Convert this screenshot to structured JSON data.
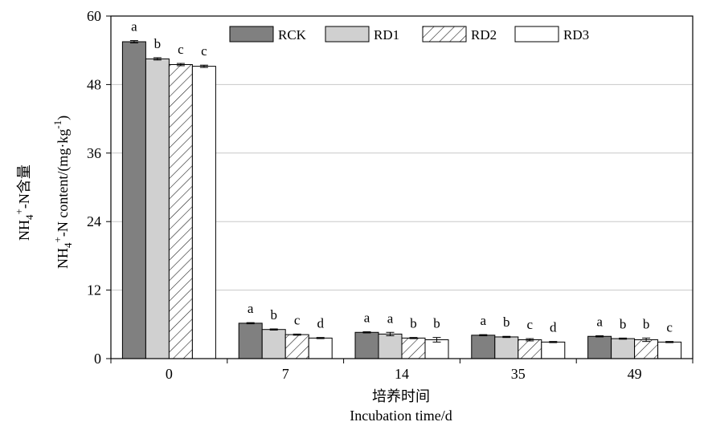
{
  "chart_data": {
    "type": "bar",
    "categories": [
      "0",
      "7",
      "14",
      "35",
      "49"
    ],
    "series": [
      {
        "name": "RCK",
        "values": [
          55.5,
          6.2,
          4.6,
          4.1,
          3.9
        ],
        "errors": [
          0.2,
          0.1,
          0.1,
          0.1,
          0.1
        ],
        "letters": [
          "a",
          "a",
          "a",
          "a",
          "a"
        ]
      },
      {
        "name": "RD1",
        "values": [
          52.5,
          5.1,
          4.3,
          3.8,
          3.5
        ],
        "errors": [
          0.2,
          0.1,
          0.3,
          0.1,
          0.1
        ],
        "letters": [
          "b",
          "b",
          "a",
          "b",
          "b"
        ]
      },
      {
        "name": "RD2",
        "values": [
          51.5,
          4.2,
          3.6,
          3.3,
          3.3
        ],
        "errors": [
          0.2,
          0.1,
          0.1,
          0.2,
          0.3
        ],
        "letters": [
          "c",
          "c",
          "b",
          "c",
          "b"
        ]
      },
      {
        "name": "RD3",
        "values": [
          51.2,
          3.6,
          3.3,
          2.9,
          2.9
        ],
        "errors": [
          0.2,
          0.1,
          0.4,
          0.1,
          0.1
        ],
        "letters": [
          "c",
          "d",
          "b",
          "d",
          "c"
        ]
      }
    ],
    "patterns": [
      "solid-dark",
      "solid-light",
      "hatch",
      "white"
    ],
    "colors": {
      "RCK": "#808080",
      "RD1": "#d0d0d0",
      "RD2": "#ffffff",
      "RD3": "#ffffff",
      "axis": "#000000",
      "grid": "#c8c8c8"
    },
    "ylim": [
      0,
      60
    ],
    "yticks": [
      0,
      12,
      24,
      36,
      48,
      60
    ],
    "grid": true,
    "legend_position": "top",
    "xlabel_cn": "培养时间",
    "xlabel_en": "Incubation time/d",
    "ylabel_cn_main": "NH",
    "ylabel_cn_sub": "4",
    "ylabel_cn_sup": "+",
    "ylabel_cn_rest": "-N含量",
    "ylabel_en_main": "NH",
    "ylabel_en_sub": "4",
    "ylabel_en_sup": "+",
    "ylabel_en_rest": "-N content/(mg·kg",
    "ylabel_en_unit_sup": "-1",
    "ylabel_en_close": ")"
  }
}
